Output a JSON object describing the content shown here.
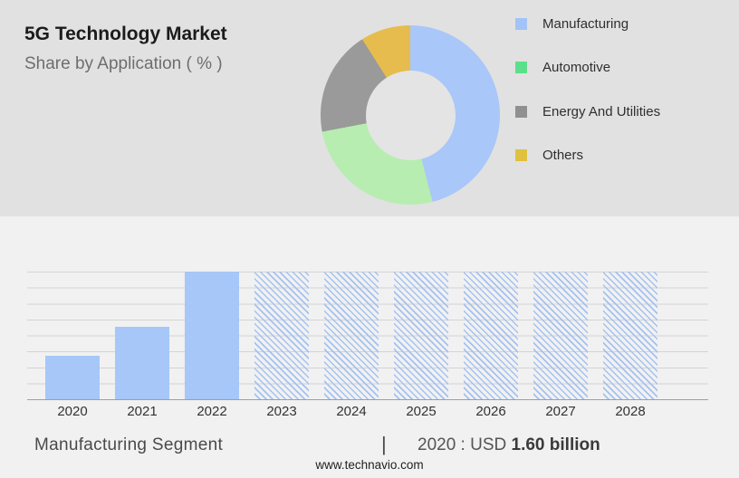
{
  "header": {
    "title": "5G Technology Market",
    "subtitle": "Share by Application ( % )"
  },
  "chart_data": [
    {
      "type": "pie",
      "title": "Share by Application ( % )",
      "donut": true,
      "labels": [
        "Manufacturing",
        "Automotive",
        "Energy And Utilities",
        "Others"
      ],
      "values": [
        46,
        26,
        19,
        9
      ],
      "unit": "%",
      "start_angle_deg": 0,
      "colors": [
        "#a9c7f8",
        "#b7edb1",
        "#9a9a9a",
        "#e6bc4e"
      ],
      "legend_colors": [
        "#a2c3f7",
        "#5cdf8a",
        "#8f9090",
        "#e0c13e"
      ],
      "legend_position": "right"
    },
    {
      "type": "bar",
      "categories": [
        "2020",
        "2021",
        "2022",
        "2023",
        "2024",
        "2025",
        "2026",
        "2027",
        "2028"
      ],
      "values_pct_of_max": [
        34,
        57,
        100,
        100,
        100,
        100,
        100,
        100,
        100
      ],
      "bar_styles": [
        "solid",
        "solid",
        "solid",
        "hatched",
        "hatched",
        "hatched",
        "hatched",
        "hatched",
        "hatched"
      ],
      "hatched_meaning": "forecast years",
      "known_points": [
        {
          "category": "2020",
          "value": "USD 1.60 billion"
        }
      ],
      "bar_color": "#a6c7f8",
      "hatch_color": "#a4c2ef",
      "grid": true,
      "gridline_count": 9,
      "xlabel": "",
      "ylabel": ""
    }
  ],
  "footer": {
    "segment_label": "Manufacturing Segment",
    "separator": "|",
    "value_prefix": "2020 : USD",
    "value_bold": "1.60 billion",
    "website": "www.technavio.com"
  }
}
